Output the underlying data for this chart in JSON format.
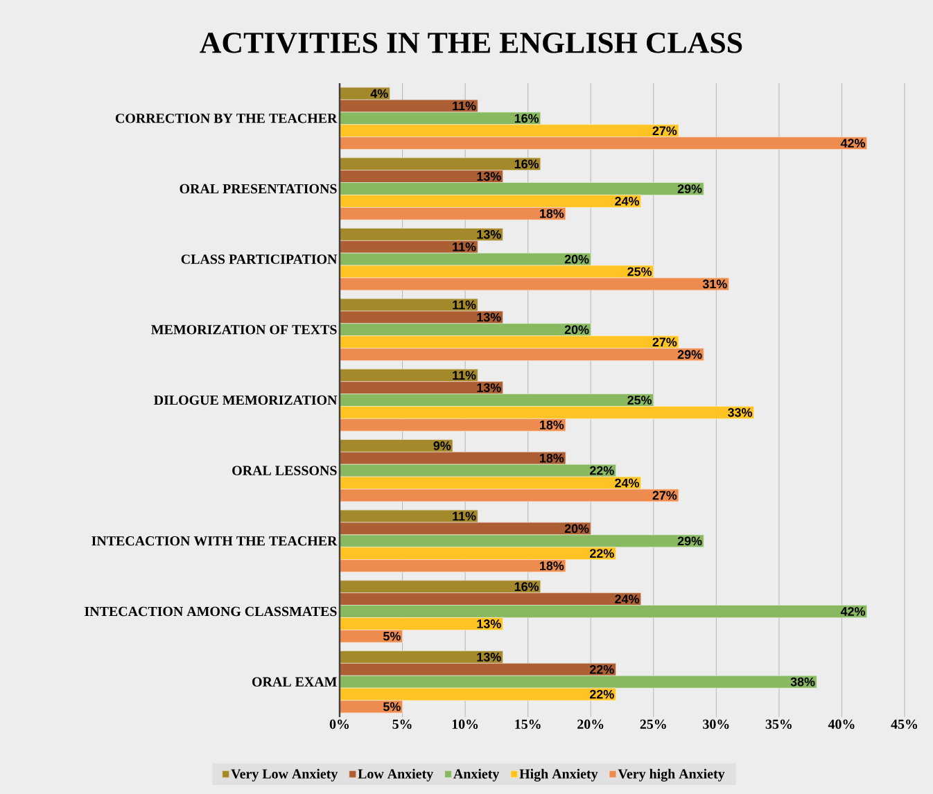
{
  "chart_data": {
    "type": "bar",
    "orientation": "horizontal",
    "title": "ACTIVITIES IN THE ENGLISH CLASS",
    "categories": [
      "CORRECTION BY THE TEACHER",
      "ORAL PRESENTATIONS",
      "CLASS PARTICIPATION",
      "MEMORIZATION OF TEXTS",
      "DILOGUE MEMORIZATION",
      "ORAL LESSONS",
      "INTECACTION WITH THE TEACHER",
      "INTECACTION AMONG CLASSMATES",
      "ORAL EXAM"
    ],
    "series": [
      {
        "name": "Very Low Anxiety",
        "color": "#a4892a",
        "values": [
          4,
          16,
          13,
          11,
          11,
          9,
          11,
          16,
          13
        ],
        "value_labels": [
          "4%",
          "16%",
          "13%",
          "11%",
          "11%",
          "9%",
          "11%",
          "16%",
          "13%"
        ]
      },
      {
        "name": "Low Anxiety",
        "color": "#ad5f33",
        "values": [
          11,
          13,
          11,
          13,
          13,
          18,
          20,
          24,
          22
        ],
        "value_labels": [
          "11%",
          "13%",
          "11%",
          "13%",
          "13%",
          "18%",
          "20%",
          "24%",
          "22%"
        ]
      },
      {
        "name": "Anxiety",
        "color": "#88b960",
        "values": [
          16,
          29,
          20,
          20,
          25,
          22,
          29,
          42,
          38
        ],
        "value_labels": [
          "16%",
          "29%",
          "20%",
          "20%",
          "25%",
          "22%",
          "29%",
          "42%",
          "38%"
        ]
      },
      {
        "name": "High Anxiety",
        "color": "#ffc423",
        "values": [
          27,
          24,
          25,
          27,
          33,
          24,
          22,
          13,
          22
        ],
        "value_labels": [
          "27%",
          "24%",
          "25%",
          "27%",
          "33%",
          "24%",
          "22%",
          "13%",
          "22%"
        ]
      },
      {
        "name": "Very high Anxiety",
        "color": "#ee8c4f",
        "values": [
          42,
          18,
          31,
          29,
          18,
          27,
          18,
          5,
          5
        ],
        "value_labels": [
          "42%",
          "18%",
          "31%",
          "29%",
          "18%",
          "27%",
          "18%",
          "5%",
          "5%"
        ]
      }
    ],
    "xlim": [
      0,
      45
    ],
    "xticks": [
      {
        "value": 0,
        "label": "0%"
      },
      {
        "value": 5,
        "label": "5%"
      },
      {
        "value": 10,
        "label": "10%"
      },
      {
        "value": 15,
        "label": "15%"
      },
      {
        "value": 20,
        "label": "20%"
      },
      {
        "value": 25,
        "label": "25%"
      },
      {
        "value": 30,
        "label": "30%"
      },
      {
        "value": 35,
        "label": "35%"
      },
      {
        "value": 40,
        "label": "40%"
      },
      {
        "value": 45,
        "label": "45%"
      }
    ],
    "grid": "x",
    "legend": "bottom"
  }
}
